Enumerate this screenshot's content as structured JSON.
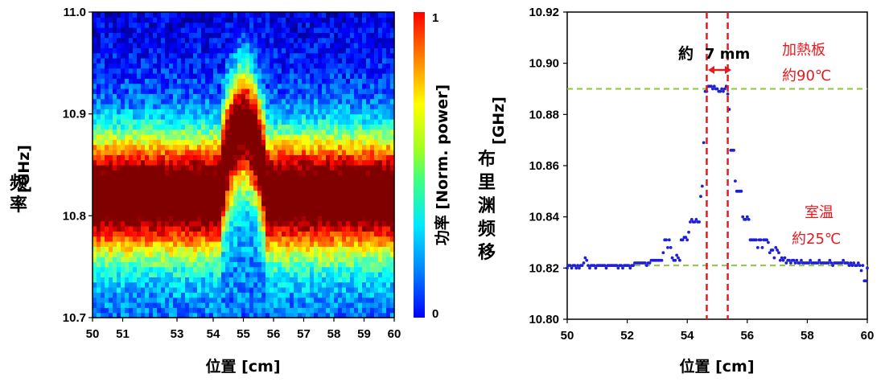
{
  "chart_data": [
    {
      "type": "heatmap",
      "xlabel": "位置 [cm]",
      "ylabel_unit": "[GHz]",
      "ylabel_name": "频率",
      "xlim": [
        50,
        60
      ],
      "ylim": [
        10.7,
        11.0
      ],
      "x_ticks": [
        "50",
        "51",
        "53",
        "54",
        "55",
        "56",
        "57",
        "58",
        "59",
        "60"
      ],
      "y_ticks": [
        "10.7",
        "10.8",
        "10.9",
        "11.0"
      ],
      "colorbar": {
        "label": "功率 [Norm. power]",
        "min_label": "0",
        "max_label": "1",
        "colormap": "jet"
      },
      "peak_frequency_baseline_ghz": 10.821,
      "peak_frequency_hot_ghz": 10.89,
      "hot_region_cm": [
        54.2,
        55.8
      ]
    },
    {
      "type": "scatter",
      "xlabel": "位置 [cm]",
      "ylabel_name": "布里渊频移",
      "ylabel_unit": "[GHz]",
      "xlim": [
        50,
        60
      ],
      "ylim": [
        10.8,
        10.92
      ],
      "x_ticks": [
        "50",
        "52",
        "54",
        "56",
        "58",
        "60"
      ],
      "y_ticks": [
        "10.80",
        "10.82",
        "10.84",
        "10.86",
        "10.88",
        "10.90",
        "10.92"
      ],
      "marker_color": "#1f1fd6",
      "points": [
        [
          50.0,
          10.82
        ],
        [
          50.05,
          10.821
        ],
        [
          50.1,
          10.821
        ],
        [
          50.15,
          10.82
        ],
        [
          50.2,
          10.821
        ],
        [
          50.25,
          10.821
        ],
        [
          50.3,
          10.82
        ],
        [
          50.35,
          10.821
        ],
        [
          50.4,
          10.82
        ],
        [
          50.45,
          10.821
        ],
        [
          50.5,
          10.821
        ],
        [
          50.55,
          10.822
        ],
        [
          50.6,
          10.824
        ],
        [
          50.65,
          10.823
        ],
        [
          50.7,
          10.821
        ],
        [
          50.75,
          10.82
        ],
        [
          50.8,
          10.821
        ],
        [
          50.85,
          10.821
        ],
        [
          50.9,
          10.821
        ],
        [
          50.95,
          10.82
        ],
        [
          51.0,
          10.821
        ],
        [
          51.05,
          10.821
        ],
        [
          51.1,
          10.821
        ],
        [
          51.15,
          10.821
        ],
        [
          51.2,
          10.821
        ],
        [
          51.25,
          10.821
        ],
        [
          51.3,
          10.82
        ],
        [
          51.35,
          10.821
        ],
        [
          51.4,
          10.821
        ],
        [
          51.45,
          10.821
        ],
        [
          51.5,
          10.821
        ],
        [
          51.55,
          10.821
        ],
        [
          51.6,
          10.821
        ],
        [
          51.65,
          10.821
        ],
        [
          51.7,
          10.82
        ],
        [
          51.75,
          10.821
        ],
        [
          51.8,
          10.821
        ],
        [
          51.85,
          10.82
        ],
        [
          51.9,
          10.821
        ],
        [
          51.95,
          10.821
        ],
        [
          52.0,
          10.821
        ],
        [
          52.05,
          10.821
        ],
        [
          52.1,
          10.82
        ],
        [
          52.15,
          10.821
        ],
        [
          52.2,
          10.821
        ],
        [
          52.25,
          10.822
        ],
        [
          52.3,
          10.822
        ],
        [
          52.35,
          10.822
        ],
        [
          52.4,
          10.822
        ],
        [
          52.45,
          10.822
        ],
        [
          52.5,
          10.822
        ],
        [
          52.55,
          10.822
        ],
        [
          52.6,
          10.822
        ],
        [
          52.65,
          10.821
        ],
        [
          52.7,
          10.822
        ],
        [
          52.75,
          10.822
        ],
        [
          52.8,
          10.823
        ],
        [
          52.85,
          10.823
        ],
        [
          52.9,
          10.823
        ],
        [
          52.95,
          10.823
        ],
        [
          53.0,
          10.823
        ],
        [
          53.05,
          10.823
        ],
        [
          53.1,
          10.823
        ],
        [
          53.15,
          10.823
        ],
        [
          53.2,
          10.826
        ],
        [
          53.25,
          10.831
        ],
        [
          53.3,
          10.831
        ],
        [
          53.35,
          10.828
        ],
        [
          53.4,
          10.831
        ],
        [
          53.45,
          10.828
        ],
        [
          53.5,
          10.824
        ],
        [
          53.55,
          10.823
        ],
        [
          53.6,
          10.823
        ],
        [
          53.65,
          10.825
        ],
        [
          53.7,
          10.824
        ],
        [
          53.75,
          10.823
        ],
        [
          53.8,
          10.831
        ],
        [
          53.85,
          10.831
        ],
        [
          53.9,
          10.832
        ],
        [
          53.95,
          10.832
        ],
        [
          54.0,
          10.831
        ],
        [
          54.05,
          10.834
        ],
        [
          54.1,
          10.838
        ],
        [
          54.15,
          10.839
        ],
        [
          54.2,
          10.838
        ],
        [
          54.25,
          10.838
        ],
        [
          54.3,
          10.839
        ],
        [
          54.35,
          10.838
        ],
        [
          54.4,
          10.838
        ],
        [
          54.45,
          10.848
        ],
        [
          54.5,
          10.852
        ],
        [
          54.55,
          10.869
        ],
        [
          54.6,
          10.889
        ],
        [
          54.65,
          10.889
        ],
        [
          54.7,
          10.891
        ],
        [
          54.75,
          10.891
        ],
        [
          54.8,
          10.891
        ],
        [
          54.85,
          10.89
        ],
        [
          54.9,
          10.891
        ],
        [
          54.95,
          10.89
        ],
        [
          55.0,
          10.89
        ],
        [
          55.05,
          10.889
        ],
        [
          55.1,
          10.889
        ],
        [
          55.15,
          10.89
        ],
        [
          55.2,
          10.889
        ],
        [
          55.25,
          10.89
        ],
        [
          55.3,
          10.891
        ],
        [
          55.35,
          10.888
        ],
        [
          55.4,
          10.882
        ],
        [
          55.45,
          10.866
        ],
        [
          55.5,
          10.866
        ],
        [
          55.55,
          10.866
        ],
        [
          55.6,
          10.854
        ],
        [
          55.65,
          10.85
        ],
        [
          55.7,
          10.85
        ],
        [
          55.75,
          10.85
        ],
        [
          55.8,
          10.85
        ],
        [
          55.85,
          10.84
        ],
        [
          55.9,
          10.839
        ],
        [
          55.95,
          10.839
        ],
        [
          56.0,
          10.84
        ],
        [
          56.05,
          10.839
        ],
        [
          56.1,
          10.831
        ],
        [
          56.15,
          10.831
        ],
        [
          56.2,
          10.831
        ],
        [
          56.25,
          10.831
        ],
        [
          56.3,
          10.831
        ],
        [
          56.35,
          10.828
        ],
        [
          56.4,
          10.831
        ],
        [
          56.45,
          10.831
        ],
        [
          56.5,
          10.828
        ],
        [
          56.55,
          10.831
        ],
        [
          56.6,
          10.831
        ],
        [
          56.65,
          10.831
        ],
        [
          56.7,
          10.83
        ],
        [
          56.75,
          10.826
        ],
        [
          56.8,
          10.827
        ],
        [
          56.85,
          10.827
        ],
        [
          56.9,
          10.824
        ],
        [
          56.95,
          10.828
        ],
        [
          57.0,
          10.827
        ],
        [
          57.05,
          10.826
        ],
        [
          57.1,
          10.823
        ],
        [
          57.15,
          10.824
        ],
        [
          57.2,
          10.823
        ],
        [
          57.25,
          10.824
        ],
        [
          57.3,
          10.822
        ],
        [
          57.35,
          10.823
        ],
        [
          57.4,
          10.823
        ],
        [
          57.45,
          10.822
        ],
        [
          57.5,
          10.823
        ],
        [
          57.55,
          10.823
        ],
        [
          57.6,
          10.822
        ],
        [
          57.65,
          10.823
        ],
        [
          57.7,
          10.822
        ],
        [
          57.75,
          10.822
        ],
        [
          57.8,
          10.823
        ],
        [
          57.85,
          10.822
        ],
        [
          57.9,
          10.822
        ],
        [
          57.95,
          10.822
        ],
        [
          58.0,
          10.822
        ],
        [
          58.05,
          10.822
        ],
        [
          58.1,
          10.823
        ],
        [
          58.15,
          10.822
        ],
        [
          58.2,
          10.822
        ],
        [
          58.25,
          10.822
        ],
        [
          58.3,
          10.822
        ],
        [
          58.35,
          10.822
        ],
        [
          58.4,
          10.823
        ],
        [
          58.45,
          10.822
        ],
        [
          58.5,
          10.822
        ],
        [
          58.55,
          10.822
        ],
        [
          58.6,
          10.822
        ],
        [
          58.65,
          10.822
        ],
        [
          58.7,
          10.822
        ],
        [
          58.75,
          10.823
        ],
        [
          58.8,
          10.822
        ],
        [
          58.85,
          10.821
        ],
        [
          58.9,
          10.822
        ],
        [
          58.95,
          10.822
        ],
        [
          59.0,
          10.822
        ],
        [
          59.05,
          10.822
        ],
        [
          59.1,
          10.822
        ],
        [
          59.15,
          10.822
        ],
        [
          59.2,
          10.823
        ],
        [
          59.25,
          10.822
        ],
        [
          59.3,
          10.822
        ],
        [
          59.35,
          10.822
        ],
        [
          59.4,
          10.821
        ],
        [
          59.45,
          10.822
        ],
        [
          59.5,
          10.821
        ],
        [
          59.55,
          10.822
        ],
        [
          59.6,
          10.821
        ],
        [
          59.65,
          10.821
        ],
        [
          59.7,
          10.822
        ],
        [
          59.75,
          10.821
        ],
        [
          59.8,
          10.819
        ],
        [
          59.85,
          10.821
        ],
        [
          59.9,
          10.815
        ],
        [
          59.95,
          10.815
        ],
        [
          60.0,
          10.82
        ]
      ],
      "hlines": [
        10.89,
        10.821
      ],
      "hline_color": "#8dc63f",
      "vlines": [
        54.65,
        55.35
      ],
      "vline_color": "#e8191e",
      "annotations": {
        "width_label_prefix": "約",
        "width_label_value": "7 mm",
        "hot_plate_label": "加熱板",
        "hot_plate_temp": "約90℃",
        "room_label": "室温",
        "room_temp": "約25℃"
      }
    }
  ]
}
